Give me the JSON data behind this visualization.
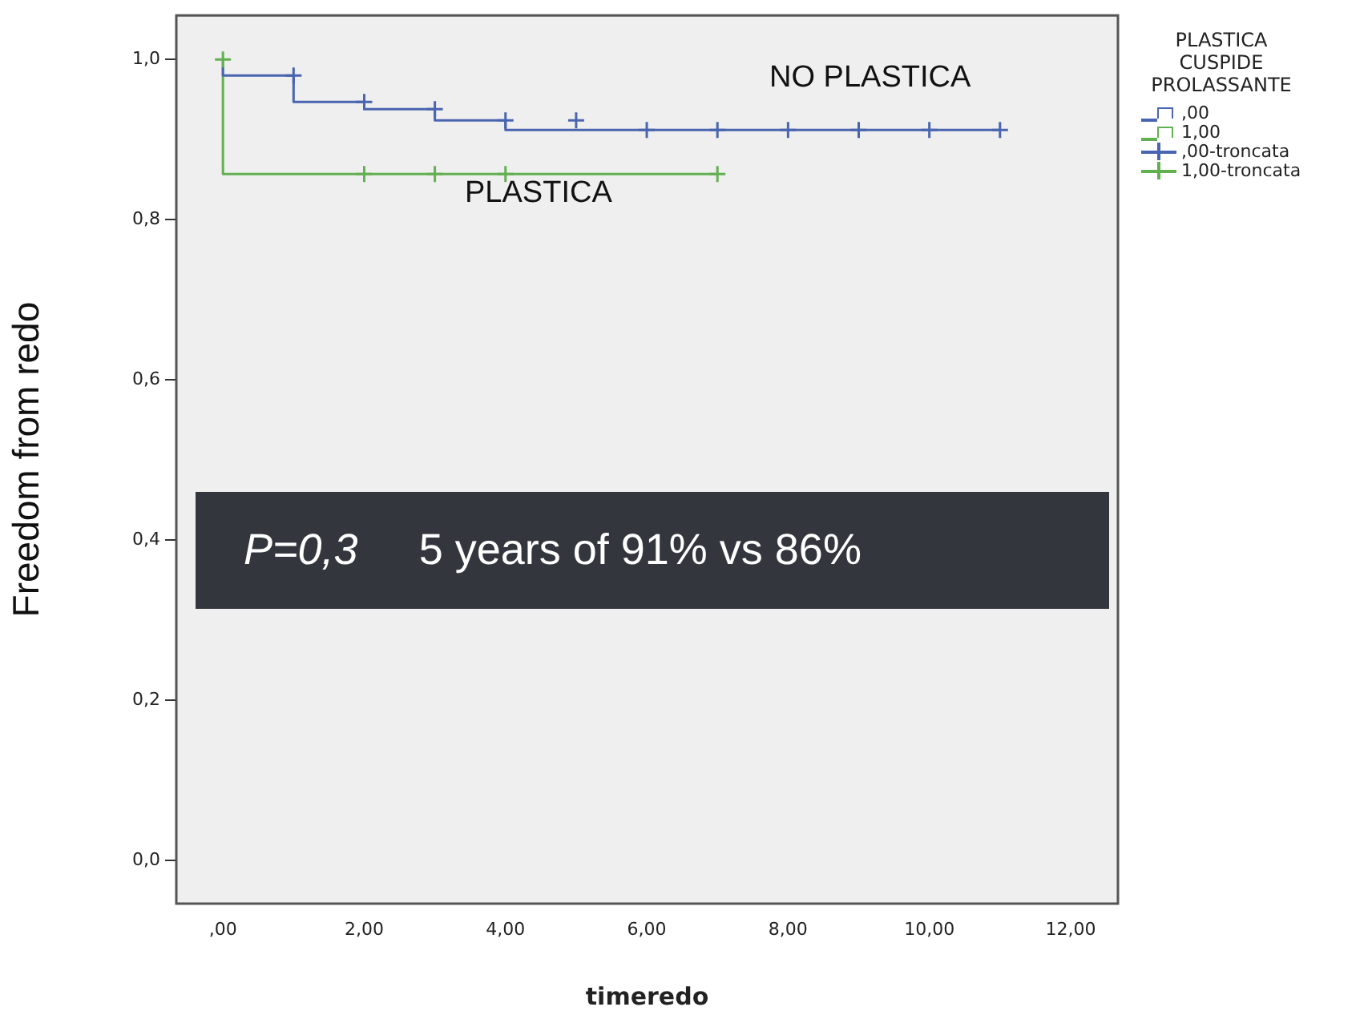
{
  "chart_data": {
    "type": "step",
    "xlabel": "timeredo",
    "ylabel": "Freedom from redo",
    "legend_title": "PLASTICA CUSPIDE PROLASSANTE",
    "legend": "right",
    "grid": false,
    "xlim": [
      -0.66,
      12.67
    ],
    "ylim": [
      -0.054,
      1.055
    ],
    "xticks": [
      {
        "value": 0,
        "label": ",00"
      },
      {
        "value": 2,
        "label": "2,00"
      },
      {
        "value": 4,
        "label": "4,00"
      },
      {
        "value": 6,
        "label": "6,00"
      },
      {
        "value": 8,
        "label": "8,00"
      },
      {
        "value": 10,
        "label": "10,00"
      },
      {
        "value": 12,
        "label": "12,00"
      }
    ],
    "yticks": [
      {
        "value": 0,
        "label": "0,0"
      },
      {
        "value": 0.2,
        "label": "0,2"
      },
      {
        "value": 0.4,
        "label": "0,4"
      },
      {
        "value": 0.6,
        "label": "0,6"
      },
      {
        "value": 0.8,
        "label": "0,8"
      },
      {
        "value": 1,
        "label": "1,0"
      }
    ],
    "series": [
      {
        "name": ",00",
        "color": "#4a65b0",
        "x": [
          0,
          1,
          2,
          3,
          4,
          6,
          11
        ],
        "values": [
          0.99,
          0.98,
          0.947,
          0.938,
          0.924,
          0.912,
          0.912
        ]
      },
      {
        "name": "1,00",
        "color": "#62b050",
        "x": [
          0,
          0,
          7
        ],
        "values": [
          1.0,
          0.857,
          0.857
        ]
      },
      {
        "name": ",00-troncata",
        "type": "scatter",
        "marker": "cross",
        "color": "#4a65b0",
        "x": [
          1,
          2,
          3,
          4,
          5,
          6,
          7,
          8,
          9,
          10,
          11
        ],
        "values": [
          0.98,
          0.947,
          0.938,
          0.924,
          0.924,
          0.912,
          0.912,
          0.912,
          0.912,
          0.912,
          0.912
        ]
      },
      {
        "name": "1,00-troncata",
        "type": "scatter",
        "marker": "cross",
        "color": "#62b050",
        "x": [
          0,
          2,
          3,
          4,
          7
        ],
        "values": [
          1.0,
          0.857,
          0.857,
          0.857,
          0.857
        ]
      }
    ],
    "annotations": [
      "NO PLASTICA",
      "PLASTICA",
      "P=0,3",
      "5 years of 91% vs 86%"
    ]
  }
}
